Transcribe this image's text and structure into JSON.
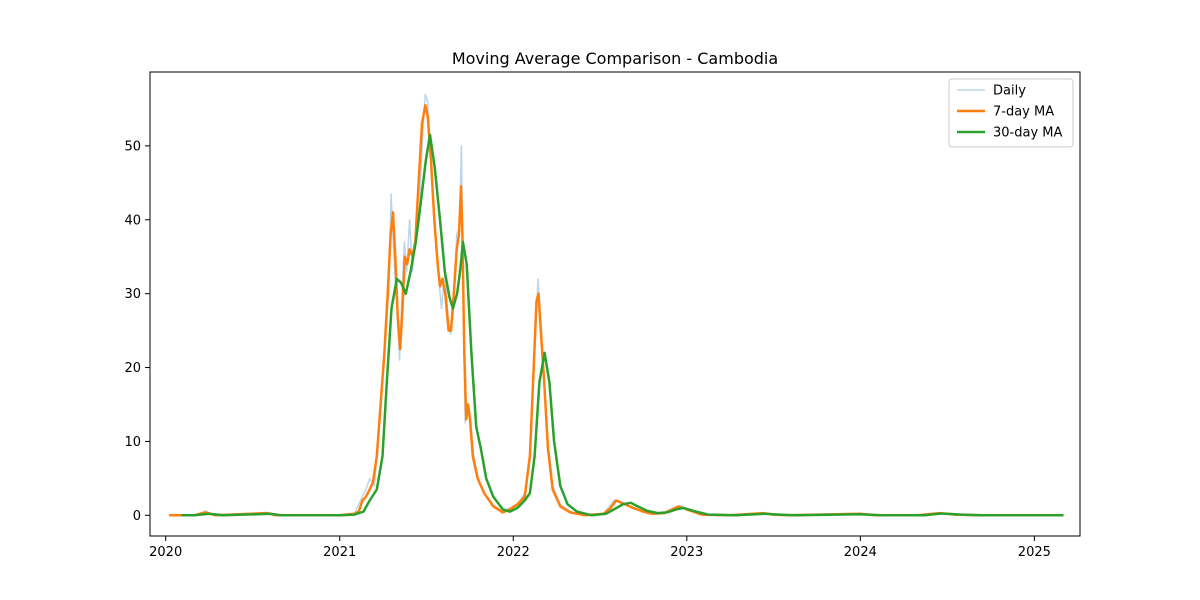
{
  "chart_data": {
    "type": "line",
    "title": "Moving Average Comparison - Cambodia",
    "xlabel": "",
    "ylabel": "",
    "xlim": [
      "2019-11-29",
      "2025-04-07"
    ],
    "ylim": [
      -2.8,
      60
    ],
    "x_ticks": [
      "2020",
      "2021",
      "2022",
      "2023",
      "2024",
      "2025"
    ],
    "x_tick_dates": [
      "2020-01-01",
      "2021-01-01",
      "2022-01-01",
      "2023-01-01",
      "2024-01-01",
      "2025-01-01"
    ],
    "y_ticks": [
      0,
      10,
      20,
      30,
      40,
      50
    ],
    "grid": false,
    "legend": {
      "placement": "top-right",
      "entries": [
        "Daily",
        "7-day MA",
        "30-day MA"
      ]
    },
    "series": [
      {
        "name": "Daily",
        "color": "#1f77b4",
        "opacity": 0.3,
        "width": 1.5,
        "points": [
          [
            "2020-01-10",
            0
          ],
          [
            "2020-03-01",
            0
          ],
          [
            "2020-03-25",
            0.6
          ],
          [
            "2020-04-10",
            0
          ],
          [
            "2020-08-01",
            0.4
          ],
          [
            "2020-08-20",
            0
          ],
          [
            "2021-01-01",
            0
          ],
          [
            "2021-02-01",
            0.2
          ],
          [
            "2021-02-15",
            2.2
          ],
          [
            "2021-02-25",
            3.5
          ],
          [
            "2021-03-05",
            5
          ],
          [
            "2021-03-15",
            4
          ],
          [
            "2021-03-25",
            12
          ],
          [
            "2021-04-01",
            18
          ],
          [
            "2021-04-08",
            25
          ],
          [
            "2021-04-14",
            30
          ],
          [
            "2021-04-19",
            43.5
          ],
          [
            "2021-04-25",
            35
          ],
          [
            "2021-05-01",
            28
          ],
          [
            "2021-05-07",
            21
          ],
          [
            "2021-05-12",
            30
          ],
          [
            "2021-05-17",
            37
          ],
          [
            "2021-05-22",
            33
          ],
          [
            "2021-05-28",
            40
          ],
          [
            "2021-06-03",
            33
          ],
          [
            "2021-06-10",
            38
          ],
          [
            "2021-06-18",
            42
          ],
          [
            "2021-06-25",
            52
          ],
          [
            "2021-06-30",
            57
          ],
          [
            "2021-07-05",
            56
          ],
          [
            "2021-07-12",
            48
          ],
          [
            "2021-07-20",
            40
          ],
          [
            "2021-07-27",
            33
          ],
          [
            "2021-08-03",
            28
          ],
          [
            "2021-08-10",
            33
          ],
          [
            "2021-08-17",
            27
          ],
          [
            "2021-08-22",
            24.5
          ],
          [
            "2021-08-29",
            28
          ],
          [
            "2021-09-04",
            38
          ],
          [
            "2021-09-10",
            39
          ],
          [
            "2021-09-14",
            50
          ],
          [
            "2021-09-18",
            30
          ],
          [
            "2021-09-22",
            12.5
          ],
          [
            "2021-09-27",
            15
          ],
          [
            "2021-10-03",
            13
          ],
          [
            "2021-10-10",
            8
          ],
          [
            "2021-10-20",
            5
          ],
          [
            "2021-11-01",
            3
          ],
          [
            "2021-11-20",
            1.5
          ],
          [
            "2021-12-10",
            0.5
          ],
          [
            "2021-12-25",
            1
          ],
          [
            "2022-01-10",
            1.5
          ],
          [
            "2022-01-25",
            3
          ],
          [
            "2022-02-05",
            8
          ],
          [
            "2022-02-15",
            22
          ],
          [
            "2022-02-22",
            32
          ],
          [
            "2022-03-01",
            25
          ],
          [
            "2022-03-07",
            18
          ],
          [
            "2022-03-15",
            10
          ],
          [
            "2022-03-25",
            4
          ],
          [
            "2022-04-10",
            1.5
          ],
          [
            "2022-05-01",
            0.5
          ],
          [
            "2022-06-01",
            0
          ],
          [
            "2022-07-10",
            0.2
          ],
          [
            "2022-08-01",
            2
          ],
          [
            "2022-08-20",
            1.7
          ],
          [
            "2022-09-10",
            1
          ],
          [
            "2022-10-01",
            0.5
          ],
          [
            "2022-10-20",
            0.2
          ],
          [
            "2022-11-15",
            0.3
          ],
          [
            "2022-12-01",
            0.8
          ],
          [
            "2022-12-15",
            1.3
          ],
          [
            "2023-01-05",
            0.7
          ],
          [
            "2023-02-01",
            0.1
          ],
          [
            "2023-04-01",
            0
          ],
          [
            "2023-06-10",
            0.3
          ],
          [
            "2023-07-01",
            0.1
          ],
          [
            "2023-08-01",
            0
          ],
          [
            "2024-01-01",
            0.2
          ],
          [
            "2024-02-01",
            0
          ],
          [
            "2024-05-01",
            0
          ],
          [
            "2024-06-15",
            0.3
          ],
          [
            "2024-07-20",
            0.1
          ],
          [
            "2024-09-01",
            0
          ],
          [
            "2025-03-01",
            0
          ]
        ]
      },
      {
        "name": "7-day MA",
        "color": "#ff7f0e",
        "opacity": 1,
        "width": 2.5,
        "points": [
          [
            "2020-01-10",
            0
          ],
          [
            "2020-03-01",
            0
          ],
          [
            "2020-03-25",
            0.4
          ],
          [
            "2020-04-15",
            0
          ],
          [
            "2020-08-01",
            0.3
          ],
          [
            "2020-08-20",
            0
          ],
          [
            "2021-01-01",
            0
          ],
          [
            "2021-02-01",
            0.2
          ],
          [
            "2021-02-10",
            0.5
          ],
          [
            "2021-02-18",
            2
          ],
          [
            "2021-02-25",
            2.5
          ],
          [
            "2021-03-05",
            3.5
          ],
          [
            "2021-03-12",
            4.5
          ],
          [
            "2021-03-20",
            8
          ],
          [
            "2021-03-28",
            15
          ],
          [
            "2021-04-05",
            22
          ],
          [
            "2021-04-12",
            30
          ],
          [
            "2021-04-18",
            38
          ],
          [
            "2021-04-23",
            41
          ],
          [
            "2021-04-28",
            35
          ],
          [
            "2021-05-03",
            27
          ],
          [
            "2021-05-08",
            22.5
          ],
          [
            "2021-05-13",
            28
          ],
          [
            "2021-05-18",
            35
          ],
          [
            "2021-05-23",
            34
          ],
          [
            "2021-05-28",
            36
          ],
          [
            "2021-06-03",
            35
          ],
          [
            "2021-06-09",
            37
          ],
          [
            "2021-06-16",
            45
          ],
          [
            "2021-06-23",
            53
          ],
          [
            "2021-06-30",
            55.5
          ],
          [
            "2021-07-05",
            54
          ],
          [
            "2021-07-12",
            48
          ],
          [
            "2021-07-19",
            40
          ],
          [
            "2021-07-26",
            34
          ],
          [
            "2021-07-31",
            31
          ],
          [
            "2021-08-05",
            32
          ],
          [
            "2021-08-11",
            30
          ],
          [
            "2021-08-18",
            25
          ],
          [
            "2021-08-23",
            25
          ],
          [
            "2021-08-29",
            30
          ],
          [
            "2021-09-04",
            36
          ],
          [
            "2021-09-09",
            38
          ],
          [
            "2021-09-13",
            44.5
          ],
          [
            "2021-09-16",
            38
          ],
          [
            "2021-09-20",
            22
          ],
          [
            "2021-09-24",
            13
          ],
          [
            "2021-09-28",
            15
          ],
          [
            "2021-10-02",
            13
          ],
          [
            "2021-10-08",
            8
          ],
          [
            "2021-10-18",
            5
          ],
          [
            "2021-11-01",
            3
          ],
          [
            "2021-11-20",
            1.2
          ],
          [
            "2021-12-10",
            0.4
          ],
          [
            "2021-12-25",
            0.8
          ],
          [
            "2022-01-10",
            1.5
          ],
          [
            "2022-01-25",
            2.5
          ],
          [
            "2022-02-05",
            8
          ],
          [
            "2022-02-13",
            20
          ],
          [
            "2022-02-19",
            29
          ],
          [
            "2022-02-23",
            30
          ],
          [
            "2022-03-01",
            24
          ],
          [
            "2022-03-07",
            18
          ],
          [
            "2022-03-15",
            9
          ],
          [
            "2022-03-25",
            3.5
          ],
          [
            "2022-04-10",
            1.2
          ],
          [
            "2022-05-01",
            0.4
          ],
          [
            "2022-06-01",
            0
          ],
          [
            "2022-07-10",
            0.2
          ],
          [
            "2022-07-25",
            1
          ],
          [
            "2022-08-05",
            2
          ],
          [
            "2022-08-20",
            1.6
          ],
          [
            "2022-09-10",
            1
          ],
          [
            "2022-10-01",
            0.5
          ],
          [
            "2022-10-20",
            0.2
          ],
          [
            "2022-11-15",
            0.3
          ],
          [
            "2022-12-01",
            0.8
          ],
          [
            "2022-12-15",
            1.2
          ],
          [
            "2023-01-05",
            0.7
          ],
          [
            "2023-02-01",
            0.1
          ],
          [
            "2023-04-01",
            0
          ],
          [
            "2023-06-10",
            0.3
          ],
          [
            "2023-07-01",
            0.1
          ],
          [
            "2023-08-01",
            0
          ],
          [
            "2024-01-01",
            0.2
          ],
          [
            "2024-02-01",
            0
          ],
          [
            "2024-05-01",
            0
          ],
          [
            "2024-06-15",
            0.3
          ],
          [
            "2024-07-20",
            0.1
          ],
          [
            "2024-09-01",
            0
          ],
          [
            "2025-03-01",
            0
          ]
        ]
      },
      {
        "name": "30-day MA",
        "color": "#2ca02c",
        "opacity": 1,
        "width": 2.5,
        "points": [
          [
            "2020-02-05",
            0
          ],
          [
            "2020-03-01",
            0
          ],
          [
            "2020-04-01",
            0.2
          ],
          [
            "2020-05-01",
            0
          ],
          [
            "2020-08-10",
            0.2
          ],
          [
            "2020-09-01",
            0
          ],
          [
            "2021-01-01",
            0
          ],
          [
            "2021-02-01",
            0.1
          ],
          [
            "2021-02-20",
            0.5
          ],
          [
            "2021-03-05",
            2
          ],
          [
            "2021-03-20",
            3.5
          ],
          [
            "2021-04-01",
            8
          ],
          [
            "2021-04-10",
            18
          ],
          [
            "2021-04-20",
            28
          ],
          [
            "2021-05-01",
            32
          ],
          [
            "2021-05-10",
            31.5
          ],
          [
            "2021-05-20",
            30
          ],
          [
            "2021-05-30",
            33
          ],
          [
            "2021-06-10",
            37
          ],
          [
            "2021-06-20",
            42
          ],
          [
            "2021-07-01",
            48
          ],
          [
            "2021-07-10",
            51.5
          ],
          [
            "2021-07-20",
            47
          ],
          [
            "2021-07-31",
            40
          ],
          [
            "2021-08-10",
            33
          ],
          [
            "2021-08-20",
            29.5
          ],
          [
            "2021-08-27",
            28
          ],
          [
            "2021-09-05",
            30
          ],
          [
            "2021-09-12",
            33.5
          ],
          [
            "2021-09-17",
            37
          ],
          [
            "2021-09-25",
            34
          ],
          [
            "2021-10-05",
            22
          ],
          [
            "2021-10-15",
            12
          ],
          [
            "2021-10-25",
            9
          ],
          [
            "2021-11-05",
            5
          ],
          [
            "2021-11-20",
            2.5
          ],
          [
            "2021-12-10",
            0.8
          ],
          [
            "2021-12-25",
            0.5
          ],
          [
            "2022-01-10",
            1
          ],
          [
            "2022-01-25",
            2
          ],
          [
            "2022-02-05",
            3
          ],
          [
            "2022-02-15",
            8
          ],
          [
            "2022-02-25",
            18
          ],
          [
            "2022-03-08",
            22
          ],
          [
            "2022-03-18",
            18
          ],
          [
            "2022-03-28",
            10
          ],
          [
            "2022-04-10",
            4
          ],
          [
            "2022-04-25",
            1.5
          ],
          [
            "2022-05-15",
            0.5
          ],
          [
            "2022-06-15",
            0
          ],
          [
            "2022-07-15",
            0.2
          ],
          [
            "2022-08-01",
            0.8
          ],
          [
            "2022-08-20",
            1.5
          ],
          [
            "2022-09-05",
            1.7
          ],
          [
            "2022-09-20",
            1.2
          ],
          [
            "2022-10-10",
            0.6
          ],
          [
            "2022-11-01",
            0.3
          ],
          [
            "2022-11-20",
            0.4
          ],
          [
            "2022-12-10",
            0.8
          ],
          [
            "2022-12-25",
            1
          ],
          [
            "2023-01-15",
            0.6
          ],
          [
            "2023-02-15",
            0.1
          ],
          [
            "2023-04-15",
            0
          ],
          [
            "2023-06-15",
            0.2
          ],
          [
            "2023-07-15",
            0.1
          ],
          [
            "2023-08-15",
            0
          ],
          [
            "2024-01-01",
            0.15
          ],
          [
            "2024-02-15",
            0
          ],
          [
            "2024-05-15",
            0
          ],
          [
            "2024-06-20",
            0.25
          ],
          [
            "2024-08-01",
            0.1
          ],
          [
            "2024-09-15",
            0
          ],
          [
            "2025-03-01",
            0
          ]
        ]
      }
    ]
  }
}
